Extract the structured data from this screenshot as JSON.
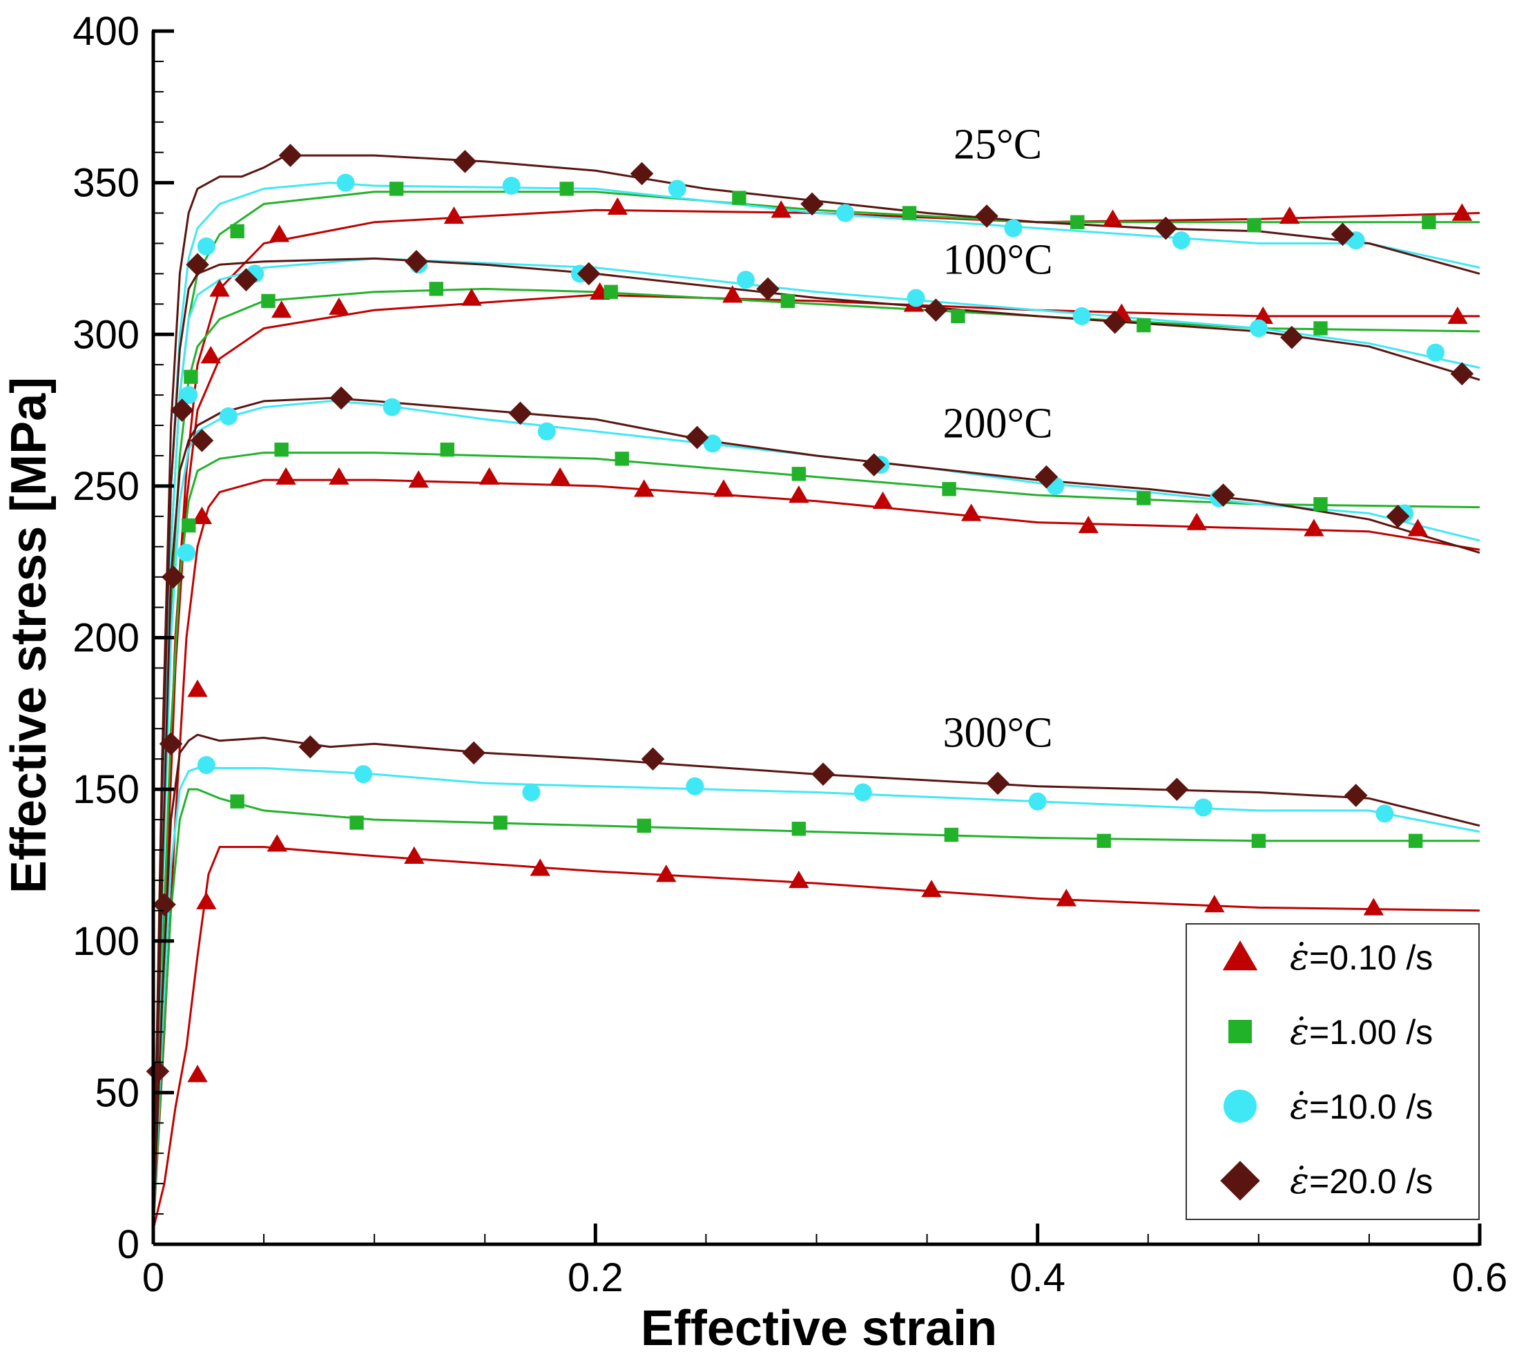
{
  "chart_data": {
    "type": "line",
    "title": "",
    "xlabel": "Effective strain",
    "ylabel": "Effective stress [MPa]",
    "xlim": [
      0,
      0.6
    ],
    "ylim": [
      0,
      400
    ],
    "x_ticks": [
      "0",
      "0.2",
      "0.4",
      "0.6"
    ],
    "y_ticks": [
      "0",
      "50",
      "100",
      "150",
      "200",
      "250",
      "300",
      "350",
      "400"
    ],
    "grid": false,
    "legend_position": "bottom-right",
    "legend": [
      {
        "key": "r01",
        "label": "=0.10 /s",
        "marker": "triangle",
        "color": "#c00000"
      },
      {
        "key": "r1",
        "label": "=1.00 /s",
        "marker": "square",
        "color": "#22b22a"
      },
      {
        "key": "r10",
        "label": "=10.0 /s",
        "marker": "circle",
        "color": "#3fe8f4"
      },
      {
        "key": "r20",
        "label": "=20.0 /s",
        "marker": "diamond",
        "color": "#5a1510"
      }
    ],
    "strain_rate_symbol": "ε̇",
    "temperature_labels": [
      {
        "text": "25°C",
        "x": 0.382,
        "y": 358
      },
      {
        "text": "100°C",
        "x": 0.382,
        "y": 320
      },
      {
        "text": "200°C",
        "x": 0.382,
        "y": 266
      },
      {
        "text": "300°C",
        "x": 0.382,
        "y": 164
      }
    ],
    "series": [
      {
        "temp": "25°C",
        "rate": "r01",
        "x": [
          0,
          0.005,
          0.01,
          0.015,
          0.02,
          0.03,
          0.05,
          0.1,
          0.2,
          0.3,
          0.4,
          0.5,
          0.6
        ],
        "y": [
          5,
          110,
          200,
          255,
          290,
          315,
          330,
          337,
          341,
          340,
          337,
          338,
          340
        ]
      },
      {
        "temp": "25°C",
        "rate": "r1",
        "x": [
          0,
          0.004,
          0.008,
          0.012,
          0.016,
          0.02,
          0.03,
          0.05,
          0.1,
          0.2,
          0.3,
          0.4,
          0.5,
          0.6
        ],
        "y": [
          5,
          130,
          230,
          280,
          305,
          320,
          333,
          343,
          347,
          347,
          341,
          337,
          337,
          337
        ]
      },
      {
        "temp": "25°C",
        "rate": "r10",
        "x": [
          0,
          0.004,
          0.008,
          0.012,
          0.016,
          0.02,
          0.03,
          0.05,
          0.08,
          0.1,
          0.2,
          0.3,
          0.4,
          0.5,
          0.55,
          0.6
        ],
        "y": [
          5,
          150,
          250,
          300,
          325,
          335,
          343,
          348,
          350,
          349,
          348,
          340,
          335,
          330,
          330,
          322
        ]
      },
      {
        "temp": "25°C",
        "rate": "r20",
        "x": [
          0,
          0.004,
          0.008,
          0.012,
          0.016,
          0.02,
          0.03,
          0.04,
          0.05,
          0.06,
          0.1,
          0.15,
          0.2,
          0.25,
          0.3,
          0.35,
          0.4,
          0.45,
          0.5,
          0.55,
          0.6
        ],
        "y": [
          5,
          160,
          270,
          320,
          340,
          348,
          352,
          352,
          355,
          359,
          359,
          357,
          354,
          348,
          344,
          340,
          337,
          335,
          334,
          330,
          320
        ]
      },
      {
        "temp": "100°C",
        "rate": "r01",
        "x": [
          0,
          0.005,
          0.01,
          0.015,
          0.02,
          0.03,
          0.05,
          0.1,
          0.2,
          0.3,
          0.4,
          0.5,
          0.6
        ],
        "y": [
          5,
          100,
          190,
          245,
          275,
          292,
          302,
          308,
          313,
          311,
          308,
          306,
          306
        ]
      },
      {
        "temp": "100°C",
        "rate": "r1",
        "x": [
          0,
          0.004,
          0.008,
          0.012,
          0.016,
          0.02,
          0.03,
          0.05,
          0.1,
          0.15,
          0.2,
          0.3,
          0.4,
          0.5,
          0.6
        ],
        "y": [
          5,
          120,
          210,
          260,
          285,
          296,
          305,
          311,
          314,
          315,
          314,
          310,
          306,
          302,
          301
        ]
      },
      {
        "temp": "100°C",
        "rate": "r10",
        "x": [
          0,
          0.004,
          0.008,
          0.012,
          0.016,
          0.02,
          0.03,
          0.05,
          0.1,
          0.2,
          0.3,
          0.4,
          0.5,
          0.55,
          0.6
        ],
        "y": [
          5,
          140,
          230,
          280,
          305,
          313,
          318,
          322,
          325,
          322,
          314,
          308,
          302,
          297,
          289
        ]
      },
      {
        "temp": "100°C",
        "rate": "r20",
        "x": [
          0,
          0.004,
          0.008,
          0.012,
          0.016,
          0.02,
          0.03,
          0.05,
          0.1,
          0.15,
          0.2,
          0.3,
          0.4,
          0.5,
          0.55,
          0.6
        ],
        "y": [
          5,
          150,
          250,
          295,
          315,
          320,
          323,
          324,
          325,
          323,
          320,
          312,
          306,
          301,
          296,
          285
        ]
      },
      {
        "temp": "200°C",
        "rate": "r01",
        "x": [
          0,
          0.005,
          0.01,
          0.015,
          0.02,
          0.025,
          0.03,
          0.05,
          0.1,
          0.2,
          0.3,
          0.4,
          0.5,
          0.55,
          0.6
        ],
        "y": [
          5,
          70,
          140,
          200,
          230,
          243,
          248,
          252,
          252,
          250,
          245,
          238,
          236,
          235,
          229
        ]
      },
      {
        "temp": "200°C",
        "rate": "r1",
        "x": [
          0,
          0.004,
          0.008,
          0.012,
          0.016,
          0.02,
          0.03,
          0.05,
          0.1,
          0.2,
          0.3,
          0.4,
          0.5,
          0.6
        ],
        "y": [
          5,
          90,
          170,
          220,
          245,
          255,
          259,
          261,
          261,
          259,
          253,
          247,
          244,
          243
        ]
      },
      {
        "temp": "200°C",
        "rate": "r10",
        "x": [
          0,
          0.004,
          0.008,
          0.012,
          0.016,
          0.02,
          0.03,
          0.04,
          0.05,
          0.08,
          0.1,
          0.15,
          0.2,
          0.25,
          0.3,
          0.35,
          0.4,
          0.45,
          0.5,
          0.55,
          0.6
        ],
        "y": [
          5,
          110,
          200,
          245,
          262,
          268,
          272,
          274,
          276,
          278,
          277,
          272,
          268,
          264,
          260,
          256,
          251,
          248,
          244,
          241,
          232
        ]
      },
      {
        "temp": "200°C",
        "rate": "r20",
        "x": [
          0,
          0.004,
          0.008,
          0.012,
          0.016,
          0.02,
          0.03,
          0.04,
          0.05,
          0.08,
          0.1,
          0.15,
          0.2,
          0.25,
          0.3,
          0.35,
          0.4,
          0.45,
          0.5,
          0.55,
          0.6
        ],
        "y": [
          5,
          120,
          220,
          255,
          265,
          270,
          274,
          276,
          278,
          279,
          278,
          275,
          272,
          265,
          260,
          256,
          252,
          249,
          245,
          239,
          228
        ]
      },
      {
        "temp": "300°C",
        "rate": "r01",
        "x": [
          0,
          0.005,
          0.01,
          0.015,
          0.02,
          0.025,
          0.03,
          0.05,
          0.1,
          0.2,
          0.3,
          0.4,
          0.5,
          0.6
        ],
        "y": [
          5,
          20,
          45,
          65,
          95,
          122,
          131,
          131,
          128,
          123,
          119,
          114,
          111,
          110
        ]
      },
      {
        "temp": "300°C",
        "rate": "r1",
        "x": [
          0,
          0.004,
          0.008,
          0.012,
          0.016,
          0.02,
          0.03,
          0.05,
          0.1,
          0.2,
          0.3,
          0.4,
          0.5,
          0.6
        ],
        "y": [
          5,
          60,
          110,
          140,
          150,
          150,
          147,
          143,
          140,
          138,
          136,
          134,
          133,
          133
        ]
      },
      {
        "temp": "300°C",
        "rate": "r10",
        "x": [
          0,
          0.004,
          0.008,
          0.012,
          0.016,
          0.02,
          0.03,
          0.05,
          0.1,
          0.15,
          0.2,
          0.3,
          0.4,
          0.5,
          0.55,
          0.6
        ],
        "y": [
          5,
          70,
          125,
          150,
          156,
          157,
          157,
          157,
          155,
          152,
          151,
          149,
          146,
          143,
          143,
          136
        ]
      },
      {
        "temp": "300°C",
        "rate": "r20",
        "x": [
          0,
          0.004,
          0.008,
          0.012,
          0.016,
          0.02,
          0.03,
          0.05,
          0.08,
          0.1,
          0.15,
          0.2,
          0.3,
          0.4,
          0.5,
          0.55,
          0.6
        ],
        "y": [
          5,
          80,
          140,
          162,
          166,
          168,
          166,
          167,
          164,
          165,
          162,
          160,
          155,
          151,
          149,
          147,
          138
        ]
      }
    ],
    "markers": {
      "r01": [
        [
          0.02,
          56
        ],
        [
          0.024,
          113
        ],
        [
          0.056,
          132
        ],
        [
          0.118,
          128
        ],
        [
          0.175,
          124
        ],
        [
          0.232,
          122
        ],
        [
          0.292,
          120
        ],
        [
          0.352,
          117
        ],
        [
          0.413,
          114
        ],
        [
          0.48,
          112
        ],
        [
          0.552,
          111
        ],
        [
          0.02,
          183
        ],
        [
          0.022,
          240
        ],
        [
          0.06,
          253
        ],
        [
          0.084,
          253
        ],
        [
          0.12,
          252
        ],
        [
          0.152,
          253
        ],
        [
          0.184,
          253
        ],
        [
          0.222,
          249
        ],
        [
          0.258,
          249
        ],
        [
          0.292,
          247
        ],
        [
          0.33,
          245
        ],
        [
          0.37,
          241
        ],
        [
          0.423,
          237
        ],
        [
          0.472,
          238
        ],
        [
          0.525,
          236
        ],
        [
          0.572,
          236
        ],
        [
          0.026,
          293
        ],
        [
          0.058,
          308
        ],
        [
          0.084,
          309
        ],
        [
          0.144,
          312
        ],
        [
          0.202,
          314
        ],
        [
          0.262,
          313
        ],
        [
          0.344,
          310
        ],
        [
          0.438,
          307
        ],
        [
          0.502,
          306
        ],
        [
          0.59,
          306
        ],
        [
          0.03,
          315
        ],
        [
          0.057,
          333
        ],
        [
          0.136,
          339
        ],
        [
          0.21,
          342
        ],
        [
          0.284,
          341
        ],
        [
          0.434,
          338
        ],
        [
          0.514,
          339
        ],
        [
          0.592,
          340
        ]
      ],
      "r1": [
        [
          0.038,
          146
        ],
        [
          0.092,
          139
        ],
        [
          0.157,
          139
        ],
        [
          0.222,
          138
        ],
        [
          0.292,
          137
        ],
        [
          0.361,
          135
        ],
        [
          0.43,
          133
        ],
        [
          0.5,
          133
        ],
        [
          0.571,
          133
        ],
        [
          0.016,
          237
        ],
        [
          0.058,
          262
        ],
        [
          0.133,
          262
        ],
        [
          0.212,
          259
        ],
        [
          0.292,
          254
        ],
        [
          0.36,
          249
        ],
        [
          0.448,
          246
        ],
        [
          0.528,
          244
        ],
        [
          0.017,
          286
        ],
        [
          0.052,
          311
        ],
        [
          0.128,
          315
        ],
        [
          0.207,
          314
        ],
        [
          0.287,
          311
        ],
        [
          0.364,
          306
        ],
        [
          0.448,
          303
        ],
        [
          0.528,
          302
        ],
        [
          0.038,
          334
        ],
        [
          0.11,
          348
        ],
        [
          0.187,
          348
        ],
        [
          0.265,
          345
        ],
        [
          0.342,
          340
        ],
        [
          0.418,
          337
        ],
        [
          0.498,
          336
        ],
        [
          0.577,
          337
        ]
      ],
      "r10": [
        [
          0.024,
          158
        ],
        [
          0.095,
          155
        ],
        [
          0.171,
          149
        ],
        [
          0.245,
          151
        ],
        [
          0.321,
          149
        ],
        [
          0.4,
          146
        ],
        [
          0.475,
          144
        ],
        [
          0.557,
          142
        ],
        [
          0.015,
          228
        ],
        [
          0.034,
          273
        ],
        [
          0.108,
          276
        ],
        [
          0.178,
          268
        ],
        [
          0.253,
          264
        ],
        [
          0.329,
          257
        ],
        [
          0.408,
          250
        ],
        [
          0.482,
          246
        ],
        [
          0.566,
          241
        ],
        [
          0.016,
          280
        ],
        [
          0.046,
          320
        ],
        [
          0.12,
          323
        ],
        [
          0.193,
          320
        ],
        [
          0.268,
          318
        ],
        [
          0.345,
          312
        ],
        [
          0.42,
          306
        ],
        [
          0.5,
          302
        ],
        [
          0.58,
          294
        ],
        [
          0.024,
          329
        ],
        [
          0.087,
          350
        ],
        [
          0.162,
          349
        ],
        [
          0.237,
          348
        ],
        [
          0.313,
          340
        ],
        [
          0.389,
          335
        ],
        [
          0.465,
          331
        ],
        [
          0.544,
          331
        ]
      ],
      "r20": [
        [
          0.002,
          57
        ],
        [
          0.005,
          112
        ],
        [
          0.008,
          165
        ],
        [
          0.071,
          164
        ],
        [
          0.145,
          162
        ],
        [
          0.226,
          160
        ],
        [
          0.303,
          155
        ],
        [
          0.382,
          152
        ],
        [
          0.463,
          150
        ],
        [
          0.544,
          148
        ],
        [
          0.009,
          220
        ],
        [
          0.013,
          275
        ],
        [
          0.022,
          265
        ],
        [
          0.085,
          279
        ],
        [
          0.166,
          274
        ],
        [
          0.246,
          266
        ],
        [
          0.326,
          257
        ],
        [
          0.404,
          253
        ],
        [
          0.484,
          247
        ],
        [
          0.563,
          240
        ],
        [
          0.042,
          318
        ],
        [
          0.119,
          324
        ],
        [
          0.197,
          320
        ],
        [
          0.278,
          315
        ],
        [
          0.354,
          308
        ],
        [
          0.435,
          304
        ],
        [
          0.515,
          299
        ],
        [
          0.592,
          287
        ],
        [
          0.02,
          323
        ],
        [
          0.062,
          359
        ],
        [
          0.141,
          357
        ],
        [
          0.221,
          353
        ],
        [
          0.298,
          343
        ],
        [
          0.377,
          339
        ],
        [
          0.458,
          335
        ],
        [
          0.538,
          333
        ]
      ]
    }
  }
}
